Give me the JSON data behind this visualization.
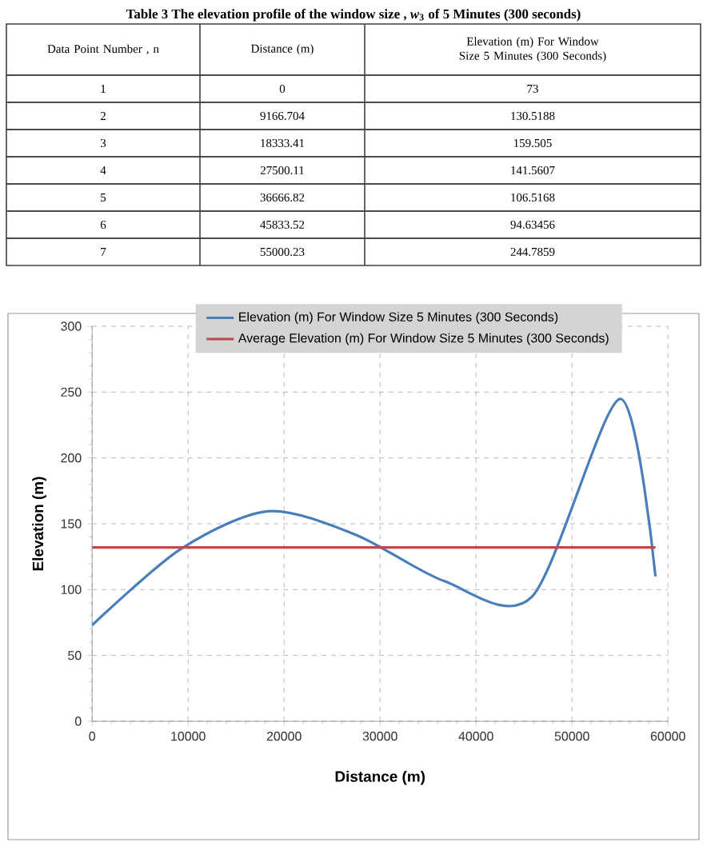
{
  "chart_data": {
    "type": "line",
    "title": "Table 3  The elevation profile of the window size , *w*$_{3}$ of 5 Minutes (300 seconds)",
    "xlabel": "Distance (m)",
    "ylabel": "Elevation (m)",
    "xlim": [
      0,
      60000
    ],
    "xticks": [
      0,
      10000,
      20000,
      30000,
      40000,
      50000,
      60000
    ],
    "ylim": [
      0,
      300
    ],
    "yticks": [
      0,
      50,
      100,
      150,
      200,
      250,
      300
    ],
    "grid": true,
    "legend": "top",
    "marker": "none",
    "line_style": "solid",
    "series": [
      {
        "name": "Elevation (m) For Window Size 5 Minutes (300 Seconds)",
        "color": "#4a7ebb",
        "x": [
          0,
          9166.704,
          18333.41,
          27500.11,
          36666.82,
          45833.52,
          55000.23,
          58700
        ],
        "values": [
          73,
          130.5188,
          159.505,
          141.5607,
          106.5168,
          94.63456,
          244.7859,
          110
        ]
      },
      {
        "name": "Average Elevation (m) For Window Size 5 Minutes (300 Seconds)",
        "color": "#be4b48",
        "x": [
          0,
          58700
        ],
        "values": [
          132,
          132
        ]
      }
    ],
    "annotations": [
      "Data Point Number , n",
      "Distance (m)",
      "Elevation (m) For Window Size 5 Minutes (300 Seconds)",
      "1",
      "0",
      "73",
      "2",
      "9166.704",
      "130.5188",
      "3",
      "18333.41",
      "159.505",
      "4",
      "27500.11",
      "141.5607",
      "5",
      "36666.82",
      "106.5168",
      "6",
      "45833.52",
      "94.63456",
      "7",
      "55000.23",
      "244.7859"
    ]
  }
}
